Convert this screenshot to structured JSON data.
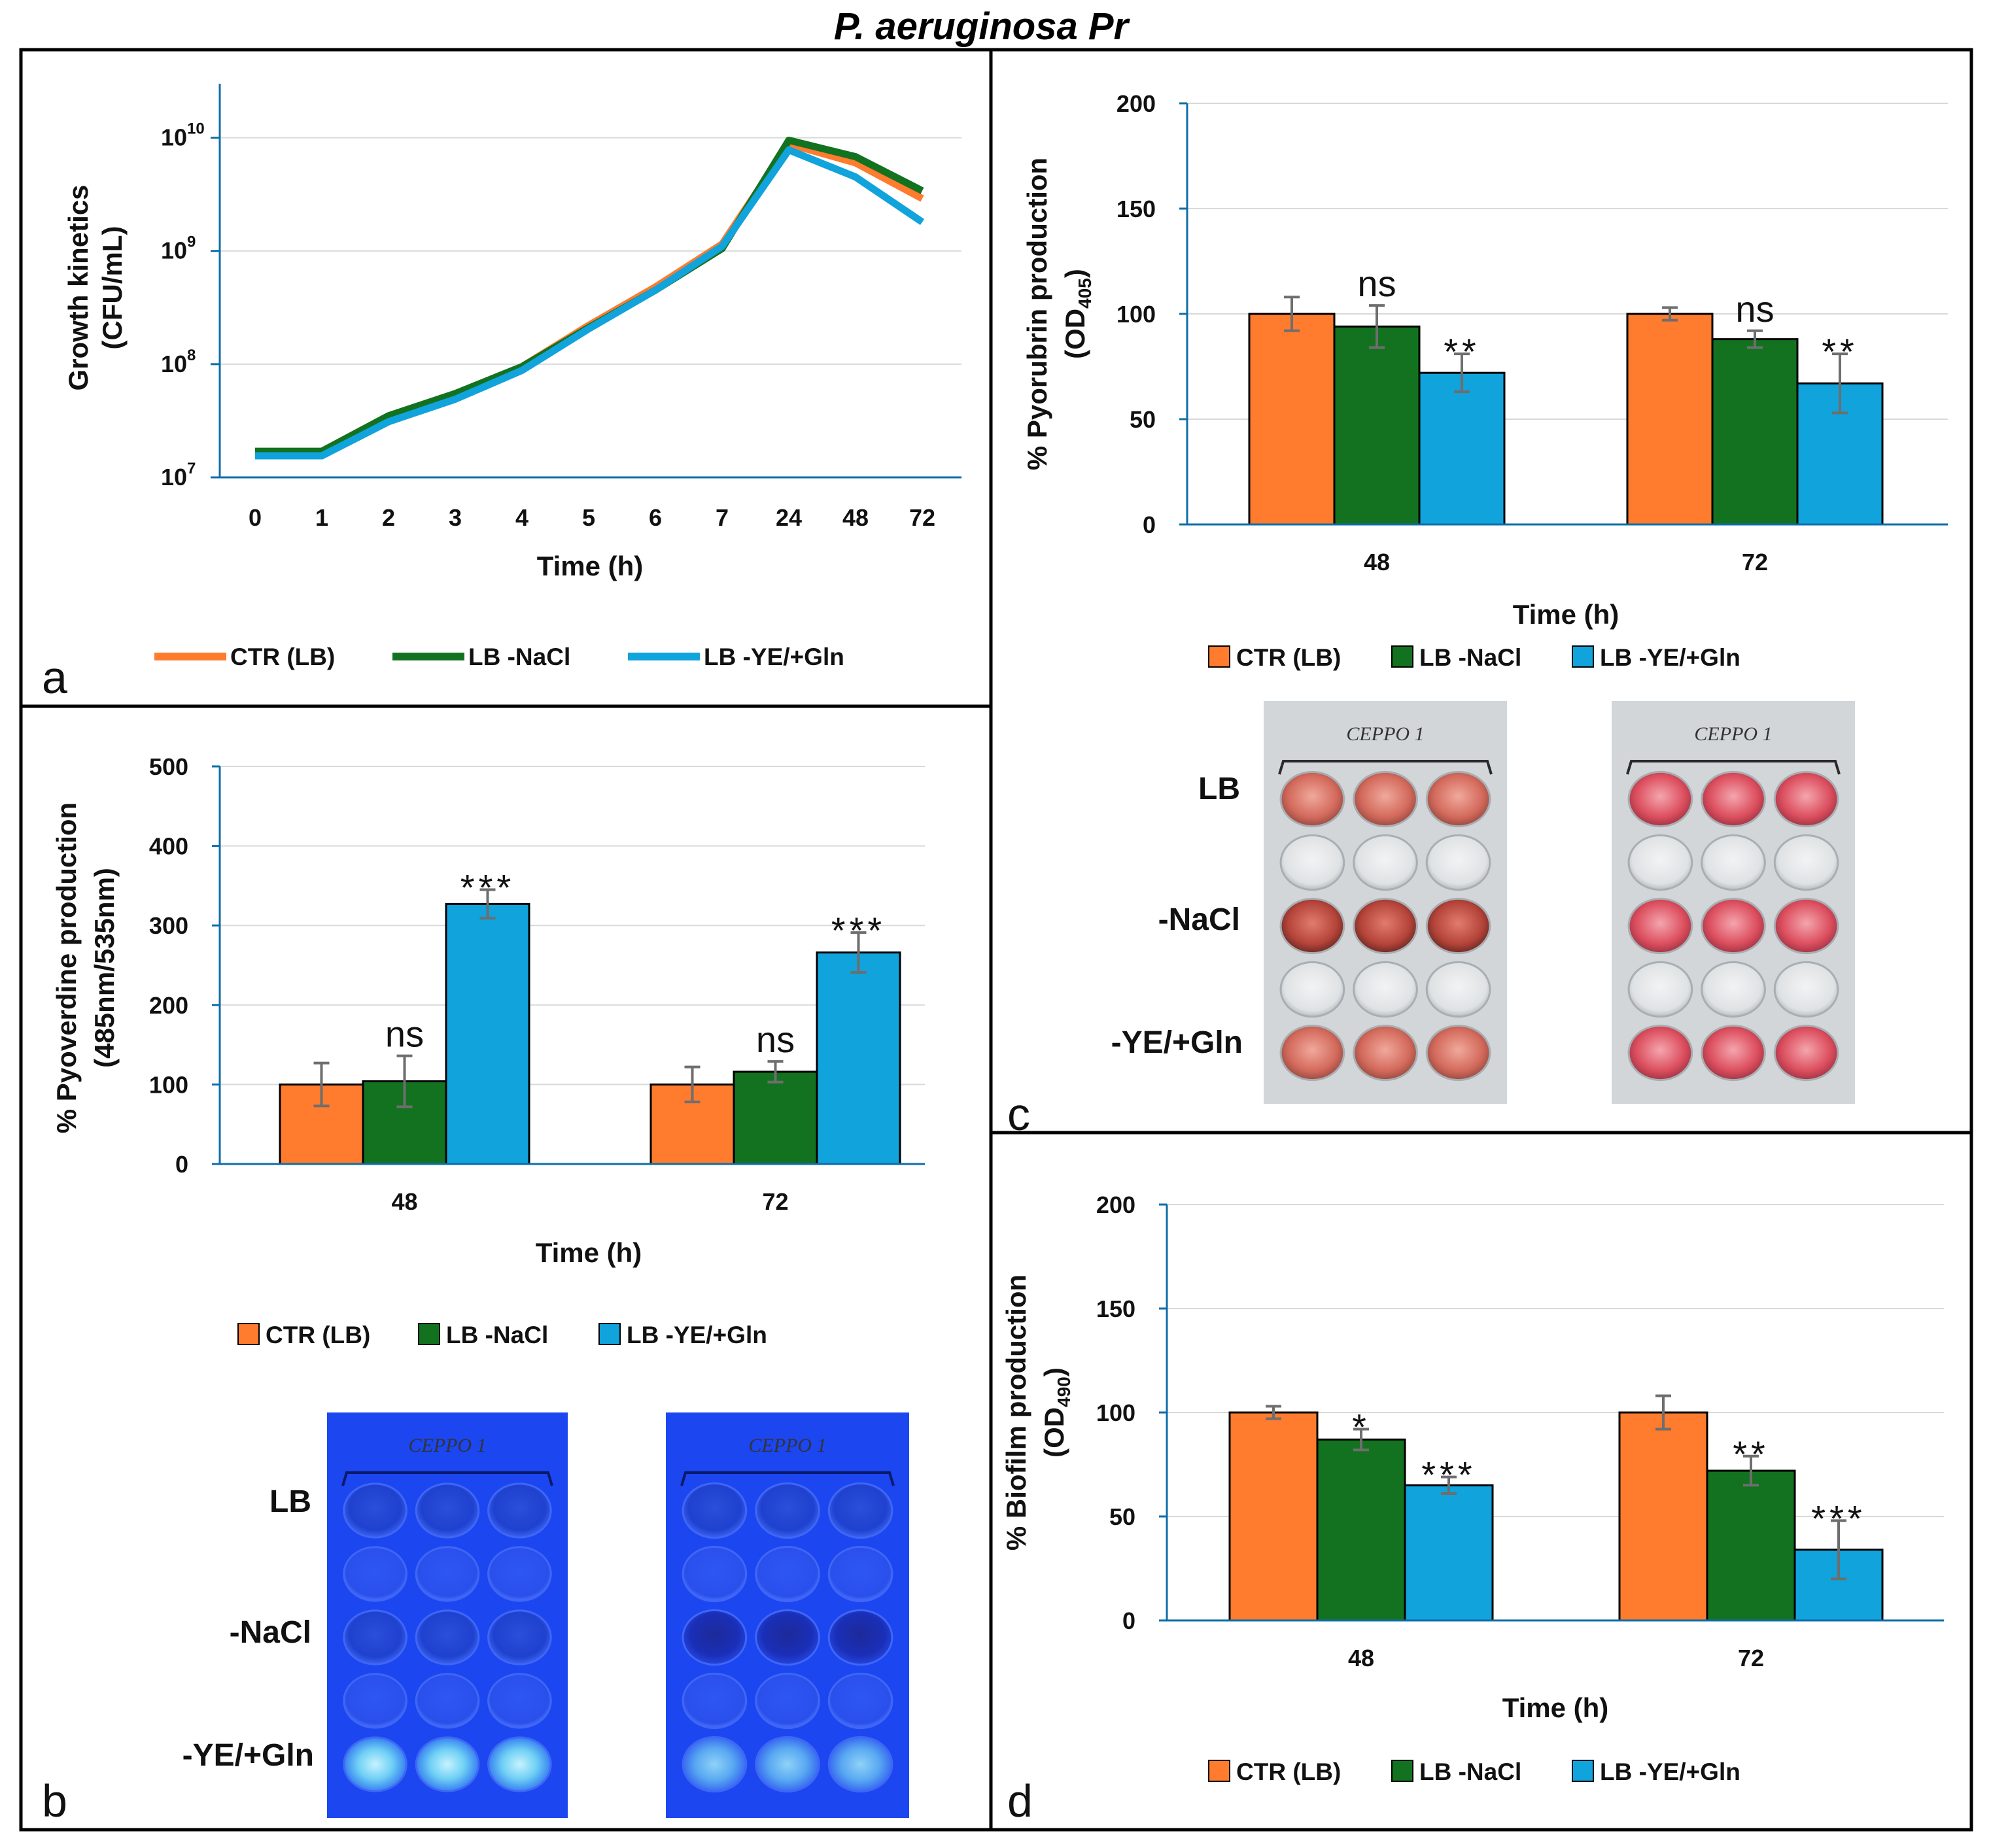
{
  "figure": {
    "title": "P. aeruginosa Pr",
    "colors": {
      "ctr": "#ff7b2e",
      "nacl": "#13721f",
      "ye": "#10a3dc",
      "red_plate_bg": "#d2d6d8",
      "blue_plate_bg": "#1b46f0"
    },
    "legend": [
      "CTR (LB)",
      "LB -NaCl",
      "LB -YE/+Gln"
    ]
  },
  "chart_data": [
    {
      "panel": "a",
      "type": "line",
      "ylabel_lines": [
        "Growth kinetics",
        "(CFU/mL)"
      ],
      "xlabel": "Time (h)",
      "yscale": "log",
      "ylim": [
        10000000,
        30000000000
      ],
      "ytick_base": "10",
      "ytick_exponents": [
        "7",
        "8",
        "9",
        "10"
      ],
      "categories": [
        "0",
        "1",
        "2",
        "3",
        "4",
        "5",
        "6",
        "7",
        "24",
        "48",
        "72"
      ],
      "series": [
        {
          "name": "CTR (LB)",
          "values": [
            16000000,
            16000000,
            33000000,
            52000000,
            95000000,
            220000000,
            480000000,
            1150000000,
            8800000000,
            6000000000,
            2900000000
          ]
        },
        {
          "name": "LB -NaCl",
          "values": [
            17000000,
            17000000,
            35000000,
            55000000,
            95000000,
            210000000,
            450000000,
            1050000000,
            9500000000,
            6800000000,
            3400000000
          ]
        },
        {
          "name": "LB -YE/+Gln",
          "values": [
            15500000,
            15500000,
            31000000,
            49000000,
            88000000,
            205000000,
            450000000,
            1100000000,
            7800000000,
            4500000000,
            1800000000
          ]
        }
      ]
    },
    {
      "panel": "b",
      "type": "bar",
      "ylabel_lines": [
        "% Pyoverdine  production",
        "(485nm/535nm)"
      ],
      "xlabel": "Time (h)",
      "ylim": [
        0,
        500
      ],
      "yticks": [
        "0",
        "100",
        "200",
        "300",
        "400",
        "500"
      ],
      "categories": [
        "48",
        "72"
      ],
      "series": [
        {
          "name": "CTR (LB)",
          "values": [
            100,
            100
          ],
          "errors": [
            27,
            22
          ]
        },
        {
          "name": "LB -NaCl",
          "values": [
            104,
            116
          ],
          "errors": [
            32,
            13
          ]
        },
        {
          "name": "LB -YE/+Gln",
          "values": [
            327,
            266
          ],
          "errors": [
            18,
            25
          ]
        }
      ],
      "annotations": [
        {
          "series": 1,
          "category": 0,
          "text": "ns"
        },
        {
          "series": 2,
          "category": 0,
          "text": "***"
        },
        {
          "series": 1,
          "category": 1,
          "text": "ns"
        },
        {
          "series": 2,
          "category": 1,
          "text": "***"
        }
      ]
    },
    {
      "panel": "c",
      "type": "bar",
      "ylabel_lines": [
        "% Pyorubrin production",
        "(OD",
        "405",
        ")"
      ],
      "xlabel": "Time (h)",
      "ylim": [
        0,
        200
      ],
      "yticks": [
        "0",
        "50",
        "100",
        "150",
        "200"
      ],
      "categories": [
        "48",
        "72"
      ],
      "series": [
        {
          "name": "CTR (LB)",
          "values": [
            100,
            100
          ],
          "errors": [
            8,
            3
          ]
        },
        {
          "name": "LB -NaCl",
          "values": [
            94,
            88
          ],
          "errors": [
            10,
            4
          ]
        },
        {
          "name": "LB -YE/+Gln",
          "values": [
            72,
            67
          ],
          "errors": [
            9,
            14
          ]
        }
      ],
      "annotations": [
        {
          "series": 1,
          "category": 0,
          "text": "ns"
        },
        {
          "series": 2,
          "category": 0,
          "text": "**"
        },
        {
          "series": 1,
          "category": 1,
          "text": "ns"
        },
        {
          "series": 2,
          "category": 1,
          "text": "**"
        }
      ]
    },
    {
      "panel": "d",
      "type": "bar",
      "ylabel_lines": [
        "% Biofilm production",
        "(OD",
        "490",
        ")"
      ],
      "xlabel": "Time (h)",
      "ylim": [
        0,
        200
      ],
      "yticks": [
        "0",
        "50",
        "100",
        "150",
        "200"
      ],
      "categories": [
        "48",
        "72"
      ],
      "series": [
        {
          "name": "CTR (LB)",
          "values": [
            100,
            100
          ],
          "errors": [
            3,
            8
          ]
        },
        {
          "name": "LB -NaCl",
          "values": [
            87,
            72
          ],
          "errors": [
            5,
            7
          ]
        },
        {
          "name": "LB -YE/+Gln",
          "values": [
            65,
            34
          ],
          "errors": [
            4,
            14
          ]
        }
      ],
      "annotations": [
        {
          "series": 1,
          "category": 0,
          "text": "*"
        },
        {
          "series": 2,
          "category": 0,
          "text": "***"
        },
        {
          "series": 1,
          "category": 1,
          "text": "**"
        },
        {
          "series": 2,
          "category": 1,
          "text": "***"
        }
      ]
    }
  ],
  "plates": {
    "row_labels": [
      "LB",
      "-NaCl",
      "-YE/+Gln"
    ],
    "plate_text": "CEPPO 1"
  },
  "panel_letters": [
    "a",
    "b",
    "c",
    "d"
  ]
}
